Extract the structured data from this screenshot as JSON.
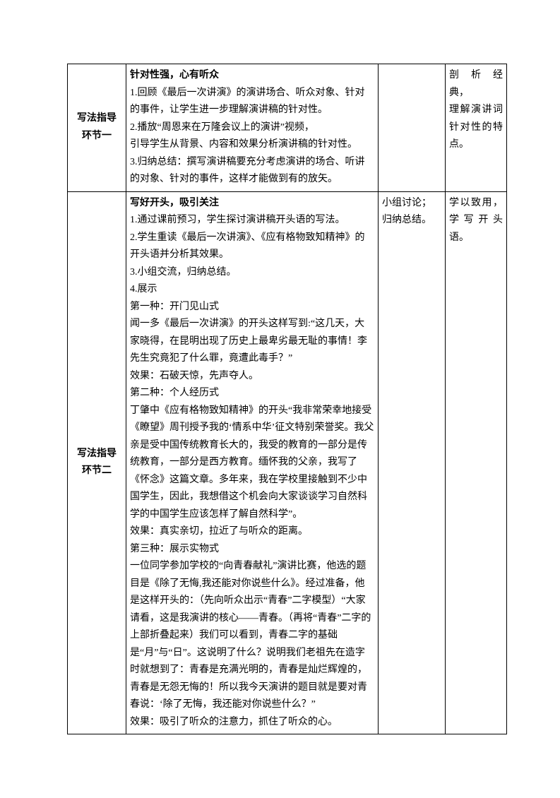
{
  "rows": [
    {
      "label": "写法指导\n环节一",
      "content": "<span class='bold'>针对性强，心有听众</span>\n1.回顾《最后一次讲演》的演讲场合、听众对象、针对的事件，让学生进一步理解演讲稿的针对性。\n2.播放“周恩来在万隆会议上的演讲”视频，\n引导学生从背景、内容和效果分析演讲稿的针对性。\n3.归纳总结：撰写演讲稿要充分考虑演讲的场合、听讲的对象、针对的事件，这样才能做到有的放矢。",
      "method": "",
      "purpose": "剖 析 经典，\n理解演讲词针对性的特点。"
    },
    {
      "label": "写法指导\n环节二",
      "content": "<span class='bold'>写好开头，吸引关注</span>\n1.通过课前预习，学生探讨演讲稿开头语的写法。\n2.学生重读《最后一次讲演》、《应有格物致知精神》的开头语并分析其效果。\n3.小组交流，归纳总结。\n4.展示\n第一种：开门见山式\n闻一多《最后一次讲演》的开头这样写到:“这几天，大家晓得，在昆明出现了历史上最卑劣最无耻的事情！李先生究竟犯了什么罪，竟遭此毒手？”\n效果：石破天惊，先声夺人。\n第二种：个人经历式\n丁肇中《应有格物致知精神》的开头“我非常荣幸地接受《瞭望》周刊授予我的‘情系中华’征文特别荣誉奖。我父亲是受中国传统教育长大的，我受的教育的一部分是传统教育，一部分是西方教育。缅怀我的父亲，我写了《怀念》这篇文章。多年来，我在学校里接触到不少中国学生，因此，我想借这个机会向大家谈谈学习自然科学的中国学生应该怎样了解自然科学”。\n效果：真实亲切，拉近了与听众的距离。\n第三种：展示实物式\n一位同学参加学校的“向青春献礼”演讲比赛，他选的题目是《除了无悔,我还能对你说些什么》。经过准备，他是这样开头的：（先向听众出示“青春”二字模型）“大家请看，这是我演讲的核心——青春。（再将“青春”二字的上部折叠起来）我们可以看到，青春二字的基础是“月”与“日”。这说明了什么？说明我们老祖先在造字时就想到了：青春是充满光明的，青春是灿烂辉煌的，青春是无怨无悔的！所以我今天演讲的题目就是要对青春说：‘除了无悔，我还能对你说些什么？”\n效果：吸引了听众的注意力，抓住了听众的心。",
      "method": "小组讨论；\n归纳总结。",
      "purpose": "学以致用，学写开头语。"
    }
  ]
}
